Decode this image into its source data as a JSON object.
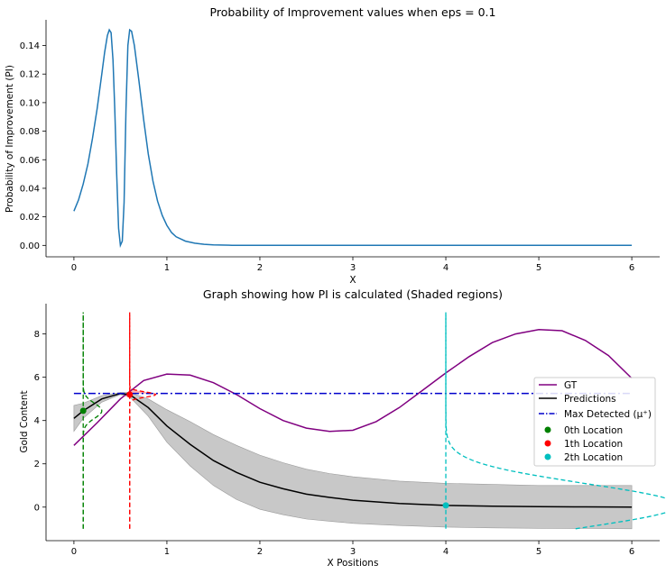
{
  "chart_data": [
    {
      "type": "line",
      "title": "Probability of Improvement values when eps = 0.1",
      "xlabel": "X",
      "ylabel": "Probability of Improvement (PI)",
      "xlim": [
        -0.3,
        6.3
      ],
      "ylim": [
        -0.008,
        0.158
      ],
      "xticks": [
        "0",
        "1",
        "2",
        "3",
        "4",
        "5",
        "6"
      ],
      "yticks": [
        "0.00",
        "0.02",
        "0.04",
        "0.06",
        "0.08",
        "0.10",
        "0.12",
        "0.14"
      ],
      "grid": false,
      "color": "#1f77b4",
      "series": [
        {
          "x": [
            0,
            0.05,
            0.1,
            0.15,
            0.2,
            0.25,
            0.3,
            0.33,
            0.36,
            0.38,
            0.4,
            0.42,
            0.44,
            0.46,
            0.48,
            0.5,
            0.52,
            0.54,
            0.56,
            0.58,
            0.6,
            0.62,
            0.65,
            0.7,
            0.75,
            0.8,
            0.85,
            0.9,
            0.95,
            1.0,
            1.05,
            1.1,
            1.2,
            1.3,
            1.4,
            1.5,
            1.7,
            2.0,
            2.5,
            3.0,
            4.0,
            5.0,
            6.0
          ],
          "y": [
            0.024,
            0.032,
            0.043,
            0.057,
            0.075,
            0.096,
            0.12,
            0.135,
            0.147,
            0.151,
            0.149,
            0.13,
            0.095,
            0.05,
            0.012,
            0.0,
            0.003,
            0.03,
            0.095,
            0.14,
            0.151,
            0.15,
            0.14,
            0.115,
            0.088,
            0.064,
            0.045,
            0.031,
            0.021,
            0.014,
            0.009,
            0.006,
            0.003,
            0.0015,
            0.0008,
            0.0004,
            0.0001,
            0.0,
            0.0,
            0.0,
            0.0,
            0.0,
            0.0
          ]
        }
      ]
    },
    {
      "type": "line",
      "title": "Graph showing how PI is calculated (Shaded regions)",
      "xlabel": "X Positions",
      "ylabel": "Gold Content",
      "xlim": [
        -0.3,
        6.3
      ],
      "ylim": [
        -1.55,
        9.4
      ],
      "xticks": [
        "0",
        "1",
        "2",
        "3",
        "4",
        "5",
        "6"
      ],
      "yticks": [
        "0",
        "2",
        "4",
        "6",
        "8"
      ],
      "grid": false,
      "legend": "right",
      "max_detected": 5.25,
      "series": [
        {
          "name": "GT",
          "color": "#800080",
          "x": [
            0,
            0.25,
            0.5,
            0.75,
            1.0,
            1.25,
            1.5,
            1.75,
            2.0,
            2.25,
            2.5,
            2.75,
            3.0,
            3.25,
            3.5,
            3.75,
            4.0,
            4.25,
            4.5,
            4.75,
            5.0,
            5.25,
            5.5,
            5.75,
            6.0
          ],
          "y": [
            2.85,
            3.9,
            5.0,
            5.85,
            6.15,
            6.1,
            5.75,
            5.2,
            4.55,
            4.0,
            3.65,
            3.5,
            3.55,
            3.95,
            4.6,
            5.4,
            6.2,
            6.95,
            7.6,
            8.0,
            8.2,
            8.15,
            7.7,
            7.0,
            5.95
          ]
        },
        {
          "name": "Predictions",
          "color": "#000000",
          "x": [
            0,
            0.1,
            0.3,
            0.5,
            0.6,
            0.8,
            1.0,
            1.25,
            1.5,
            1.75,
            2.0,
            2.25,
            2.5,
            2.75,
            3.0,
            3.5,
            4.0,
            4.5,
            5.0,
            5.5,
            6.0
          ],
          "y": [
            4.1,
            4.45,
            5.0,
            5.25,
            5.2,
            4.6,
            3.75,
            2.9,
            2.15,
            1.6,
            1.15,
            0.85,
            0.6,
            0.45,
            0.32,
            0.17,
            0.08,
            0.04,
            0.02,
            0.01,
            0.0
          ],
          "band_upper": [
            4.7,
            4.8,
            5.15,
            5.3,
            5.3,
            5.0,
            4.5,
            3.95,
            3.35,
            2.85,
            2.4,
            2.05,
            1.75,
            1.55,
            1.4,
            1.2,
            1.1,
            1.05,
            1.0,
            1.0,
            1.0
          ],
          "band_lower": [
            3.5,
            4.1,
            4.85,
            5.2,
            5.1,
            4.2,
            3.0,
            1.9,
            1.0,
            0.35,
            -0.1,
            -0.35,
            -0.55,
            -0.65,
            -0.75,
            -0.85,
            -0.92,
            -0.96,
            -0.98,
            -0.99,
            -1.0
          ]
        },
        {
          "name": "Max Detected ($\\mu^+$)",
          "label_text": "Max Detected (μ⁺)",
          "color": "#0000cc",
          "style": "dashdot",
          "x": [
            0,
            6
          ],
          "y": [
            5.25,
            5.25
          ]
        }
      ],
      "locations": [
        {
          "name": "0th Location",
          "x": 0.1,
          "y": 4.45,
          "color": "#008000",
          "sigma": 0.35,
          "scale": 0.2
        },
        {
          "name": "1th Location",
          "x": 0.6,
          "y": 5.2,
          "color": "#ff0000",
          "sigma": 0.12,
          "scale": 0.28
        },
        {
          "name": "2th Location",
          "x": 4.0,
          "y": 0.08,
          "color": "#00bfbf",
          "sigma": 1.0,
          "scale": 2.5
        }
      ]
    }
  ]
}
